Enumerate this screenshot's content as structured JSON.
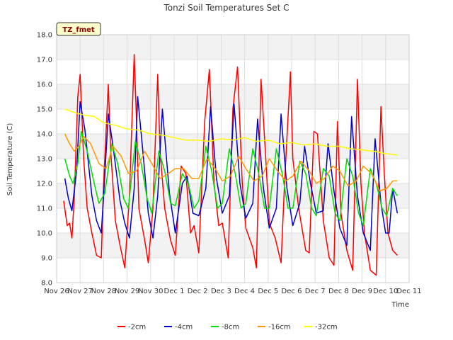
{
  "chart_data": {
    "type": "line",
    "title": "Tonzi Soil Temperatures Set C",
    "xlabel": "Time",
    "ylabel": "Soil Temperature (C)",
    "site_label": "TZ_fmet",
    "ylim": [
      8.0,
      18.0
    ],
    "yticks": [
      "8.0",
      "9.0",
      "10.0",
      "11.0",
      "12.0",
      "13.0",
      "14.0",
      "15.0",
      "16.0",
      "17.0",
      "18.0"
    ],
    "xlim": [
      0,
      15
    ],
    "xticks": [
      "Nov 26",
      "Nov 27",
      "Nov 28",
      "Nov 29",
      "Nov 30",
      "Dec 1",
      "Dec 2",
      "Dec 3",
      "Dec 4",
      "Dec 5",
      "Dec 6",
      "Dec 7",
      "Dec 8",
      "Dec 9",
      "Dec 10",
      "Dec 11"
    ],
    "grid": true,
    "legend_position": "bottom",
    "series": [
      {
        "name": "-2cm",
        "color": "#ff0000",
        "x": [
          0.3,
          0.45,
          0.55,
          0.65,
          0.75,
          0.9,
          1.0,
          1.15,
          1.3,
          1.5,
          1.7,
          1.9,
          2.0,
          2.2,
          2.3,
          2.5,
          2.7,
          2.9,
          3.1,
          3.3,
          3.4,
          3.5,
          3.75,
          3.9,
          4.1,
          4.3,
          4.4,
          4.6,
          4.85,
          5.05,
          5.3,
          5.5,
          5.7,
          5.85,
          6.05,
          6.3,
          6.5,
          6.7,
          6.9,
          7.05,
          7.3,
          7.5,
          7.7,
          7.9,
          8.05,
          8.35,
          8.5,
          8.7,
          8.9,
          9.05,
          9.3,
          9.55,
          9.7,
          9.95,
          10.05,
          10.3,
          10.6,
          10.75,
          10.95,
          11.1,
          11.35,
          11.6,
          11.8,
          11.95,
          12.1,
          12.35,
          12.6,
          12.8,
          12.95,
          13.1,
          13.35,
          13.6,
          13.8,
          13.95,
          14.1,
          14.3,
          14.5
        ],
        "y": [
          11.3,
          10.3,
          10.4,
          9.8,
          11.4,
          15.5,
          16.4,
          13.0,
          11.0,
          10.0,
          9.1,
          9.0,
          12.0,
          16.0,
          13.3,
          10.5,
          9.5,
          8.6,
          11.5,
          17.2,
          14.5,
          11.0,
          9.7,
          8.8,
          11.0,
          16.4,
          13.3,
          11.0,
          9.7,
          9.1,
          12.7,
          12.4,
          10.0,
          10.3,
          9.2,
          14.5,
          16.6,
          12.0,
          10.3,
          10.4,
          9.0,
          15.0,
          16.7,
          12.0,
          10.2,
          9.4,
          8.6,
          16.2,
          13.0,
          10.4,
          9.8,
          8.8,
          12.0,
          16.5,
          13.0,
          11.0,
          9.3,
          9.2,
          14.1,
          14.0,
          10.5,
          9.0,
          8.7,
          14.5,
          10.8,
          9.3,
          8.5,
          16.2,
          12.0,
          10.0,
          8.5,
          8.3,
          15.1,
          12.3,
          10.0,
          9.3,
          9.1
        ]
      },
      {
        "name": "-4cm",
        "color": "#0000cc",
        "x": [
          0.35,
          0.5,
          0.65,
          0.85,
          1.0,
          1.2,
          1.5,
          1.7,
          1.9,
          2.0,
          2.2,
          2.4,
          2.7,
          2.9,
          3.1,
          3.3,
          3.45,
          3.7,
          3.9,
          4.1,
          4.3,
          4.5,
          4.8,
          5.05,
          5.35,
          5.55,
          5.8,
          6.05,
          6.35,
          6.55,
          6.8,
          7.05,
          7.35,
          7.55,
          7.8,
          8.05,
          8.35,
          8.55,
          8.8,
          9.05,
          9.35,
          9.55,
          9.8,
          10.05,
          10.35,
          10.55,
          10.8,
          11.05,
          11.35,
          11.55,
          11.8,
          12.05,
          12.35,
          12.55,
          12.8,
          13.05,
          13.35,
          13.55,
          13.8,
          14.0,
          14.15,
          14.3,
          14.5
        ],
        "y": [
          12.2,
          11.4,
          10.9,
          12.5,
          15.3,
          14.2,
          11.5,
          10.5,
          10.0,
          11.5,
          14.8,
          13.5,
          11.3,
          10.4,
          9.8,
          11.8,
          15.5,
          13.0,
          10.8,
          9.8,
          11.5,
          15.0,
          11.6,
          10.0,
          12.0,
          12.3,
          10.8,
          10.7,
          11.8,
          15.1,
          12.2,
          10.8,
          11.5,
          15.2,
          12.0,
          10.6,
          11.2,
          14.6,
          11.8,
          10.2,
          11.0,
          14.8,
          11.8,
          10.3,
          11.2,
          13.5,
          12.0,
          10.8,
          10.9,
          13.6,
          11.7,
          10.2,
          9.5,
          14.7,
          11.5,
          10.0,
          9.3,
          13.8,
          11.2,
          10.0,
          10.0,
          11.8,
          10.8
        ]
      },
      {
        "name": "-8cm",
        "color": "#00dd00",
        "x": [
          0.35,
          0.55,
          0.7,
          0.9,
          1.05,
          1.3,
          1.6,
          1.8,
          2.05,
          2.35,
          2.6,
          2.85,
          3.05,
          3.35,
          3.6,
          3.85,
          4.05,
          4.35,
          4.6,
          4.85,
          5.05,
          5.35,
          5.6,
          5.85,
          6.05,
          6.35,
          6.6,
          6.85,
          7.05,
          7.35,
          7.6,
          7.85,
          8.05,
          8.35,
          8.6,
          8.85,
          9.05,
          9.35,
          9.6,
          9.85,
          10.05,
          10.35,
          10.6,
          10.85,
          11.05,
          11.35,
          11.6,
          11.85,
          12.05,
          12.35,
          12.6,
          12.85,
          13.05,
          13.35,
          13.6,
          13.85,
          14.05,
          14.3,
          14.5
        ],
        "y": [
          13.0,
          12.3,
          12.0,
          12.8,
          14.1,
          13.3,
          12.0,
          11.2,
          11.6,
          13.6,
          12.8,
          11.4,
          11.0,
          13.7,
          12.8,
          11.4,
          10.8,
          13.3,
          12.5,
          11.2,
          11.1,
          12.4,
          12.0,
          11.0,
          11.3,
          13.5,
          12.5,
          11.0,
          11.2,
          13.4,
          12.4,
          11.0,
          11.2,
          13.4,
          12.4,
          11.0,
          11.0,
          13.4,
          12.4,
          11.0,
          11.0,
          12.9,
          12.4,
          11.0,
          10.7,
          12.6,
          12.3,
          10.8,
          10.5,
          13.0,
          12.3,
          10.8,
          10.3,
          12.6,
          12.0,
          11.0,
          10.7,
          11.8,
          11.5
        ]
      },
      {
        "name": "-16cm",
        "color": "#ff9900",
        "x": [
          0.35,
          0.55,
          0.75,
          0.95,
          1.15,
          1.45,
          1.8,
          2.1,
          2.4,
          2.75,
          3.05,
          3.4,
          3.75,
          4.05,
          4.4,
          4.75,
          5.05,
          5.4,
          5.75,
          6.05,
          6.4,
          6.75,
          7.05,
          7.4,
          7.75,
          8.05,
          8.4,
          8.75,
          9.05,
          9.4,
          9.75,
          10.05,
          10.4,
          10.75,
          11.05,
          11.4,
          11.75,
          12.05,
          12.4,
          12.75,
          13.05,
          13.4,
          13.75,
          14.05,
          14.3,
          14.5
        ],
        "y": [
          14.0,
          13.6,
          13.3,
          13.5,
          13.9,
          13.6,
          12.8,
          12.6,
          13.5,
          13.1,
          12.4,
          12.5,
          13.3,
          12.8,
          12.2,
          12.4,
          12.6,
          12.6,
          12.2,
          12.2,
          13.0,
          12.6,
          12.1,
          12.3,
          13.1,
          12.6,
          12.1,
          12.3,
          13.0,
          12.5,
          12.1,
          12.3,
          12.9,
          12.5,
          12.0,
          12.2,
          12.7,
          12.5,
          11.9,
          12.1,
          12.7,
          12.4,
          11.7,
          11.8,
          12.1,
          12.1
        ]
      },
      {
        "name": "-32cm",
        "color": "#ffff00",
        "x": [
          0.35,
          0.8,
          1.2,
          1.6,
          2.0,
          2.5,
          3.0,
          3.5,
          4.0,
          4.5,
          5.0,
          5.5,
          6.0,
          6.5,
          7.0,
          7.5,
          8.0,
          8.5,
          9.0,
          9.5,
          10.0,
          10.5,
          11.0,
          11.5,
          12.0,
          12.5,
          13.0,
          13.5,
          14.0,
          14.5
        ],
        "y": [
          15.0,
          14.85,
          14.75,
          14.7,
          14.45,
          14.35,
          14.2,
          14.15,
          14.0,
          13.95,
          13.85,
          13.75,
          13.75,
          13.7,
          13.8,
          13.75,
          13.85,
          13.7,
          13.75,
          13.6,
          13.65,
          13.55,
          13.6,
          13.5,
          13.5,
          13.4,
          13.35,
          13.3,
          13.2,
          13.15
        ]
      }
    ]
  }
}
